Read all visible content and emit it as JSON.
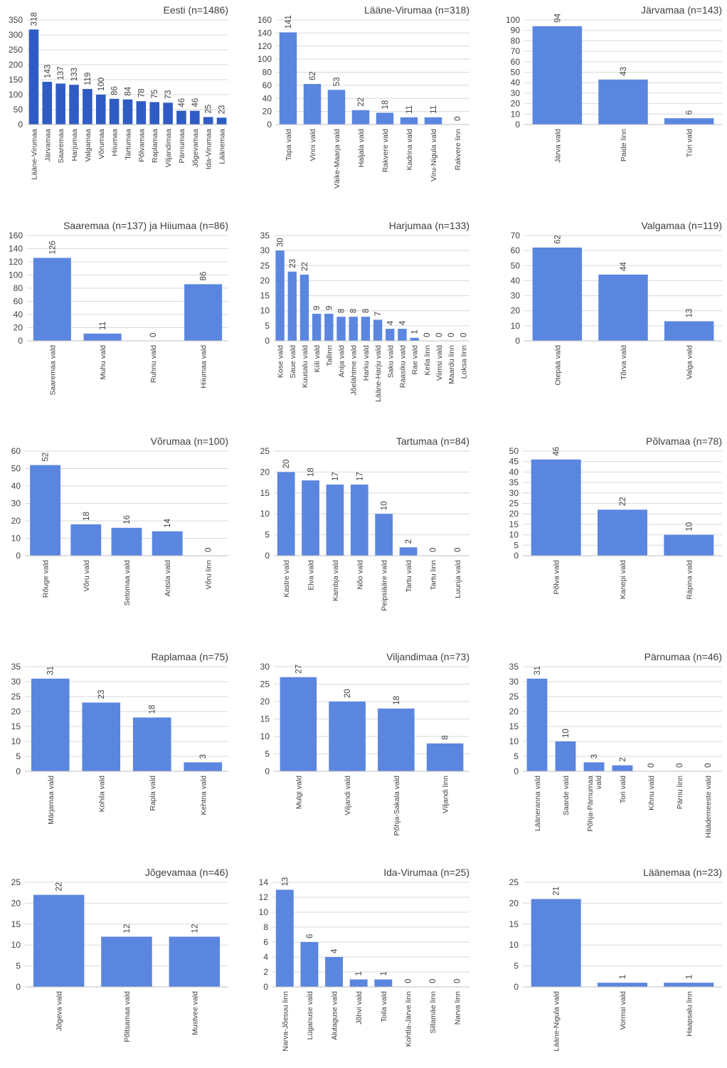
{
  "chart_data": [
    {
      "type": "bar",
      "title": "Eesti (n=1486)",
      "color": "#2f5cc4",
      "categories": [
        "Lääne-Virumaa",
        "Järvamaa",
        "Saaremaa",
        "Harjumaa",
        "Valgamaa",
        "Võrumaa",
        "Hiiumaa",
        "Tartumaa",
        "Põlvamaa",
        "Raplamaa",
        "Viljandimaa",
        "Pärnumaa",
        "Jõgevamaa",
        "Ida-Virumaa",
        "Läänemaa"
      ],
      "values": [
        318,
        143,
        137,
        133,
        119,
        100,
        86,
        84,
        78,
        75,
        73,
        46,
        46,
        25,
        23
      ],
      "ylim": [
        0,
        350
      ],
      "yticks": [
        0,
        50,
        100,
        150,
        200,
        250,
        300,
        350
      ],
      "xlabel": "",
      "ylabel": "",
      "grid": true
    },
    {
      "type": "bar",
      "title": "Lääne-Virumaa (n=318)",
      "color": "#5b86e0",
      "categories": [
        "Tapa vald",
        "Vinni vald",
        "Väike-Maarja vald",
        "Haljala vald",
        "Rakvere vald",
        "Kadrina vald",
        "Viru-Nigula vald",
        "Rakvere linn"
      ],
      "values": [
        141,
        62,
        53,
        22,
        18,
        11,
        11,
        0
      ],
      "ylim": [
        0,
        160
      ],
      "yticks": [
        0,
        20,
        40,
        60,
        80,
        100,
        120,
        140,
        160
      ],
      "xlabel": "",
      "ylabel": "",
      "grid": true
    },
    {
      "type": "bar",
      "title": "Järvamaa (n=143)",
      "color": "#5b86e0",
      "categories": [
        "Järva vald",
        "Paide linn",
        "Türi vald"
      ],
      "values": [
        94,
        43,
        6
      ],
      "ylim": [
        0,
        100
      ],
      "yticks": [
        0,
        10,
        20,
        30,
        40,
        50,
        60,
        70,
        80,
        90,
        100
      ],
      "xlabel": "",
      "ylabel": "",
      "grid": true
    },
    {
      "type": "bar",
      "title": "Saaremaa (n=137) ja Hiiumaa (n=86)",
      "color": "#5b86e0",
      "categories": [
        "Saaremaa vald",
        "Muhu vald",
        "Ruhnu vald",
        "Hiiumaa vald"
      ],
      "values": [
        126,
        11,
        0,
        86
      ],
      "ylim": [
        0,
        160
      ],
      "yticks": [
        0,
        20,
        40,
        60,
        80,
        100,
        120,
        140,
        160
      ],
      "xlabel": "",
      "ylabel": "",
      "grid": true
    },
    {
      "type": "bar",
      "title": "Harjumaa (n=133)",
      "color": "#5b86e0",
      "categories": [
        "Kose vald",
        "Saue vald",
        "Kuusalu vald",
        "Kiili vald",
        "Tallinn",
        "Anija vald",
        "Jõelähtme vald",
        "Harku vald",
        "Lääne-Harju vald",
        "Saku vald",
        "Raasiku vald",
        "Rae vald",
        "Keila linn",
        "Viimsi vald",
        "Maardu linn",
        "Loksa linn"
      ],
      "values": [
        30,
        23,
        22,
        9,
        9,
        8,
        8,
        8,
        7,
        4,
        4,
        1,
        0,
        0,
        0,
        0
      ],
      "ylim": [
        0,
        35
      ],
      "yticks": [
        0,
        5,
        10,
        15,
        20,
        25,
        30,
        35
      ],
      "xlabel": "",
      "ylabel": "",
      "grid": true
    },
    {
      "type": "bar",
      "title": "Valgamaa (n=119)",
      "color": "#5b86e0",
      "categories": [
        "Otepää vald",
        "Tõrva vald",
        "Valga vald"
      ],
      "values": [
        62,
        44,
        13
      ],
      "ylim": [
        0,
        70
      ],
      "yticks": [
        0,
        10,
        20,
        30,
        40,
        50,
        60,
        70
      ],
      "xlabel": "",
      "ylabel": "",
      "grid": true
    },
    {
      "type": "bar",
      "title": "Võrumaa (n=100)",
      "color": "#5b86e0",
      "categories": [
        "Rõuge vald",
        "Võru vald",
        "Setomaa vald",
        "Antsla vald",
        "Võru linn"
      ],
      "values": [
        52,
        18,
        16,
        14,
        0
      ],
      "ylim": [
        0,
        60
      ],
      "yticks": [
        0,
        10,
        20,
        30,
        40,
        50,
        60
      ],
      "xlabel": "",
      "ylabel": "",
      "grid": true
    },
    {
      "type": "bar",
      "title": "Tartumaa (n=84)",
      "color": "#5b86e0",
      "categories": [
        "Kastre vald",
        "Elva vald",
        "Kambja vald",
        "Nõo vald",
        "Peipsiääre vald",
        "Tartu vald",
        "Tartu linn",
        "Luunja vald"
      ],
      "values": [
        20,
        18,
        17,
        17,
        10,
        2,
        0,
        0
      ],
      "ylim": [
        0,
        25
      ],
      "yticks": [
        0,
        5,
        10,
        15,
        20,
        25
      ],
      "xlabel": "",
      "ylabel": "",
      "grid": true
    },
    {
      "type": "bar",
      "title": "Põlvamaa (n=78)",
      "color": "#5b86e0",
      "categories": [
        "Põlva vald",
        "Kanepi vald",
        "Räpina vald"
      ],
      "values": [
        46,
        22,
        10
      ],
      "ylim": [
        0,
        50
      ],
      "yticks": [
        0,
        5,
        10,
        15,
        20,
        25,
        30,
        35,
        40,
        45,
        50
      ],
      "xlabel": "",
      "ylabel": "",
      "grid": true
    },
    {
      "type": "bar",
      "title": "Raplamaa (n=75)",
      "color": "#5b86e0",
      "categories": [
        "Märjamaa vald",
        "Kohila vald",
        "Rapla vald",
        "Kehtna vald"
      ],
      "values": [
        31,
        23,
        18,
        3
      ],
      "ylim": [
        0,
        35
      ],
      "yticks": [
        0,
        5,
        10,
        15,
        20,
        25,
        30,
        35
      ],
      "xlabel": "",
      "ylabel": "",
      "grid": true
    },
    {
      "type": "bar",
      "title": "Viljandimaa (n=73)",
      "color": "#5b86e0",
      "categories": [
        "Mulgi vald",
        "Viljandi vald",
        "Põhja-Sakala vald",
        "Viljandi linn"
      ],
      "values": [
        27,
        20,
        18,
        8
      ],
      "ylim": [
        0,
        30
      ],
      "yticks": [
        0,
        5,
        10,
        15,
        20,
        25,
        30
      ],
      "xlabel": "",
      "ylabel": "",
      "grid": true
    },
    {
      "type": "bar",
      "title": "Pärnumaa (n=46)",
      "color": "#5b86e0",
      "categories": [
        "Lääneranna vald",
        "Saarde vald",
        "Põhja-Pärnumaa vald",
        "Tori vald",
        "Kihnu vald",
        "Pärnu linn",
        "Häädemeeste vald"
      ],
      "values": [
        31,
        10,
        3,
        2,
        0,
        0,
        0
      ],
      "ylim": [
        0,
        35
      ],
      "yticks": [
        0,
        5,
        10,
        15,
        20,
        25,
        30,
        35
      ],
      "xlabel": "",
      "ylabel": "",
      "grid": true
    },
    {
      "type": "bar",
      "title": "Jõgevamaa (n=46)",
      "color": "#5b86e0",
      "categories": [
        "Jõgeva vald",
        "Põltsamaa vald",
        "Mustvee vald"
      ],
      "values": [
        22,
        12,
        12
      ],
      "ylim": [
        0,
        25
      ],
      "yticks": [
        0,
        5,
        10,
        15,
        20,
        25
      ],
      "xlabel": "",
      "ylabel": "",
      "grid": true
    },
    {
      "type": "bar",
      "title": "Ida-Virumaa (n=25)",
      "color": "#5b86e0",
      "categories": [
        "Narva-Jõesuu linn",
        "Lüganuse vald",
        "Alutaguse vald",
        "Jõhvi vald",
        "Toila vald",
        "Kohtla-Järve linn",
        "Sillamäe linn",
        "Narva linn"
      ],
      "values": [
        13,
        6,
        4,
        1,
        1,
        0,
        0,
        0
      ],
      "ylim": [
        0,
        14
      ],
      "yticks": [
        0,
        2,
        4,
        6,
        8,
        10,
        12,
        14
      ],
      "xlabel": "",
      "ylabel": "",
      "grid": true
    },
    {
      "type": "bar",
      "title": "Läänemaa (n=23)",
      "color": "#5b86e0",
      "categories": [
        "Lääne-Nigula vald",
        "Vormsi vald",
        "Haapsalu linn"
      ],
      "values": [
        21,
        1,
        1
      ],
      "ylim": [
        0,
        25
      ],
      "yticks": [
        0,
        5,
        10,
        15,
        20,
        25
      ],
      "xlabel": "",
      "ylabel": "",
      "grid": true
    }
  ]
}
